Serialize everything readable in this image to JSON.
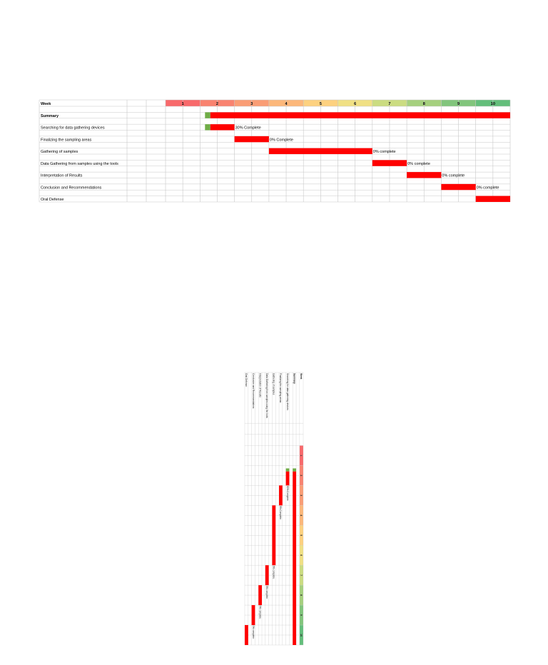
{
  "chart_data": {
    "type": "gantt",
    "header_label": "Week",
    "weeks": [
      "1",
      "2",
      "3",
      "4",
      "5",
      "6",
      "7",
      "8",
      "9",
      "10"
    ],
    "week_colors": [
      "#f8696b",
      "#f98370",
      "#fa9d75",
      "#fcb77a",
      "#fdd17f",
      "#f0e084",
      "#cbdc81",
      "#a5d07e",
      "#81c57c",
      "#63be7b"
    ],
    "bar_color": "#ff0000",
    "progress_color": "#70ad47",
    "tasks": [
      {
        "name": "Summary",
        "bold": true,
        "start": 2,
        "end": 10,
        "progress_weeks": 0.3,
        "status": ""
      },
      {
        "name": "Searching for data gathering devices",
        "bold": false,
        "start": 2,
        "end": 2,
        "progress_weeks": 0.3,
        "status": "30% Complete"
      },
      {
        "name": "Finalizing the sampling areas",
        "bold": false,
        "start": 3,
        "end": 3,
        "progress_weeks": 0,
        "status": "0% Complete"
      },
      {
        "name": "Gathering of samples",
        "bold": false,
        "start": 4,
        "end": 6,
        "progress_weeks": 0,
        "status": "0% complete"
      },
      {
        "name": "Data Gathering from samples using the tools",
        "bold": false,
        "start": 7,
        "end": 7,
        "progress_weeks": 0,
        "status": "0% complete"
      },
      {
        "name": "Interpretation of Results",
        "bold": false,
        "start": 8,
        "end": 8,
        "progress_weeks": 0,
        "status": "0% complete"
      },
      {
        "name": "Conclusion and Recommendations",
        "bold": false,
        "start": 9,
        "end": 9,
        "progress_weeks": 0,
        "status": "0% complete"
      },
      {
        "name": "Oral Defense",
        "bold": false,
        "start": 10,
        "end": 10,
        "progress_weeks": 0,
        "status": ""
      }
    ]
  }
}
